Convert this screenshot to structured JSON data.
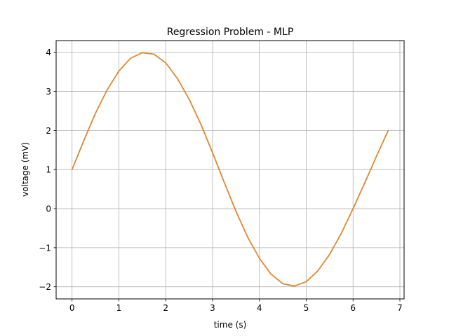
{
  "chart_data": {
    "type": "line",
    "title": "Regression Problem - MLP",
    "xlabel": "time (s)",
    "ylabel": "voltage (mV)",
    "xlim": [
      -0.34,
      7.09
    ],
    "ylim": [
      -2.31,
      4.3
    ],
    "xticks": [
      0,
      1,
      2,
      3,
      4,
      5,
      6,
      7
    ],
    "yticks": [
      -2,
      -1,
      0,
      1,
      2,
      3,
      4
    ],
    "xtick_labels": [
      "0",
      "1",
      "2",
      "3",
      "4",
      "5",
      "6",
      "7"
    ],
    "ytick_labels": [
      "−2",
      "−1",
      "0",
      "1",
      "2",
      "3",
      "4"
    ],
    "grid": true,
    "x": [
      0.0,
      0.25,
      0.5,
      0.75,
      1.0,
      1.25,
      1.5,
      1.75,
      2.0,
      2.25,
      2.5,
      2.75,
      3.0,
      3.25,
      3.5,
      3.75,
      4.0,
      4.25,
      4.5,
      4.75,
      5.0,
      5.25,
      5.5,
      5.75,
      6.0,
      6.25,
      6.5,
      6.75
    ],
    "series": [
      {
        "color": "#0000cc",
        "values": [
          1.0,
          1.74,
          2.44,
          3.04,
          3.52,
          3.85,
          3.99,
          3.95,
          3.73,
          3.33,
          2.8,
          2.16,
          1.43,
          0.67,
          -0.07,
          -0.73,
          -1.27,
          -1.68,
          -1.92,
          -1.98,
          -1.87,
          -1.59,
          -1.17,
          -0.63,
          0.0,
          0.66,
          1.34,
          2.0
        ]
      },
      {
        "color": "#ff8c00",
        "values": [
          1.0,
          1.74,
          2.44,
          3.04,
          3.52,
          3.85,
          3.99,
          3.95,
          3.73,
          3.33,
          2.8,
          2.16,
          1.43,
          0.67,
          -0.07,
          -0.73,
          -1.27,
          -1.68,
          -1.92,
          -1.98,
          -1.87,
          -1.59,
          -1.17,
          -0.63,
          0.0,
          0.66,
          1.34,
          2.0
        ]
      }
    ]
  }
}
